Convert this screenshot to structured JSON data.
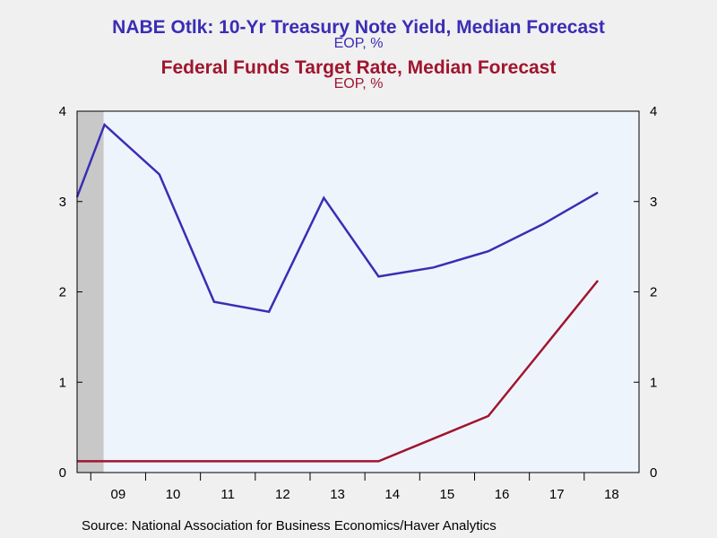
{
  "chart_data": {
    "type": "line",
    "title": "NABE Otlk: 10-Yr Treasury Note Yield, Median Forecast",
    "subtitle": "EOP, %",
    "title2": "Federal Funds Target Rate, Median Forecast",
    "subtitle2": "EOP, %",
    "categories": [
      "09",
      "10",
      "11",
      "12",
      "13",
      "14",
      "15",
      "16",
      "17",
      "18"
    ],
    "ylim": [
      0,
      4
    ],
    "yticks": [
      "0",
      "1",
      "2",
      "3",
      "4"
    ],
    "recession_shading": {
      "from_year": "09",
      "span": "start through early 2009"
    },
    "series": [
      {
        "color": "#3b2db5",
        "points": [
          {
            "x": "2008.75",
            "y": 3.05
          },
          {
            "x": "2009.25",
            "y": 3.85
          },
          {
            "x": "2010.25",
            "y": 3.3
          },
          {
            "x": "2011.25",
            "y": 1.89
          },
          {
            "x": "2012.25",
            "y": 1.78
          },
          {
            "x": "2013.25",
            "y": 3.04
          },
          {
            "x": "2014.25",
            "y": 2.17
          },
          {
            "x": "2015.25",
            "y": 2.27
          },
          {
            "x": "2016.25",
            "y": 2.45
          },
          {
            "x": "2017.25",
            "y": 2.75
          },
          {
            "x": "2018.25",
            "y": 3.1
          }
        ]
      },
      {
        "color": "#a0152e",
        "points": [
          {
            "x": "2008.75",
            "y": 0.125
          },
          {
            "x": "2014.25",
            "y": 0.125
          },
          {
            "x": "2015.25",
            "y": 0.375
          },
          {
            "x": "2016.25",
            "y": 0.625
          },
          {
            "x": "2017.25",
            "y": 1.375
          },
          {
            "x": "2018.25",
            "y": 2.125
          }
        ]
      }
    ],
    "grid": false,
    "legend": "none"
  },
  "source": "Source:  National Association for Business Economics/Haver Analytics",
  "colors": {
    "plot_background": "#eef4fc",
    "page_background": "#f0f0f0",
    "recession": "#c8c8c8"
  }
}
